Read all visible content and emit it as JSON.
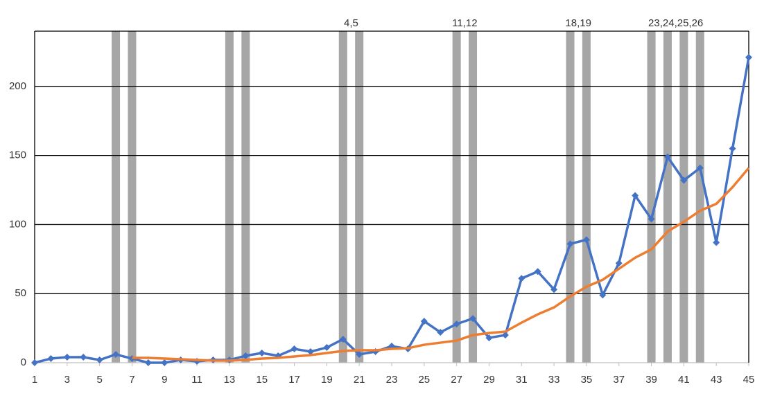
{
  "chart_data": {
    "type": "line",
    "x": [
      1,
      2,
      3,
      4,
      5,
      6,
      7,
      8,
      9,
      10,
      11,
      12,
      13,
      14,
      15,
      16,
      17,
      18,
      19,
      20,
      21,
      22,
      23,
      24,
      25,
      26,
      27,
      28,
      29,
      30,
      31,
      32,
      33,
      34,
      35,
      36,
      37,
      38,
      39,
      40,
      41,
      42,
      43,
      44,
      45
    ],
    "series": [
      {
        "color": "#4472c4",
        "marker": "diamond",
        "values": [
          0,
          3,
          4,
          4,
          2,
          6,
          3,
          0,
          0,
          2,
          1,
          2,
          2,
          5,
          7,
          5,
          10,
          8,
          11,
          17,
          6,
          8,
          12,
          10,
          30,
          22,
          28,
          32,
          18,
          20,
          61,
          66,
          53,
          86,
          89,
          49,
          72,
          121,
          104,
          149,
          132,
          141,
          87,
          155,
          221
        ]
      },
      {
        "color": "#ed7d31",
        "values": [
          null,
          null,
          null,
          null,
          null,
          null,
          3.5,
          3.5,
          3,
          2.5,
          2,
          1.5,
          1.5,
          2,
          3,
          3.5,
          4.5,
          5.5,
          7,
          8.5,
          9,
          9,
          10,
          10.5,
          13,
          14.5,
          16,
          20,
          21.5,
          22.5,
          29,
          35,
          40,
          48,
          55,
          60,
          68,
          76,
          82,
          95,
          102,
          110,
          115,
          127,
          141
        ]
      }
    ],
    "highlight_x": [
      6,
      7,
      13,
      14,
      20,
      21,
      27,
      28,
      34,
      35,
      39,
      40,
      41,
      42
    ],
    "highlight_color": "#a6a6a6",
    "annotations": [
      {
        "text": "4,5",
        "x": 20.5
      },
      {
        "text": "11,12",
        "x": 27.5
      },
      {
        "text": "18,19",
        "x": 34.5
      },
      {
        "text": "23,24,25,26",
        "x": 40.5
      }
    ],
    "xlim": [
      1,
      45
    ],
    "xticks": [
      1,
      3,
      5,
      7,
      9,
      11,
      13,
      15,
      17,
      19,
      21,
      23,
      25,
      27,
      29,
      31,
      33,
      35,
      37,
      39,
      41,
      43,
      45
    ],
    "ylim": [
      0,
      240
    ],
    "yticks": [
      0,
      50,
      100,
      150,
      200
    ],
    "grid": true
  }
}
